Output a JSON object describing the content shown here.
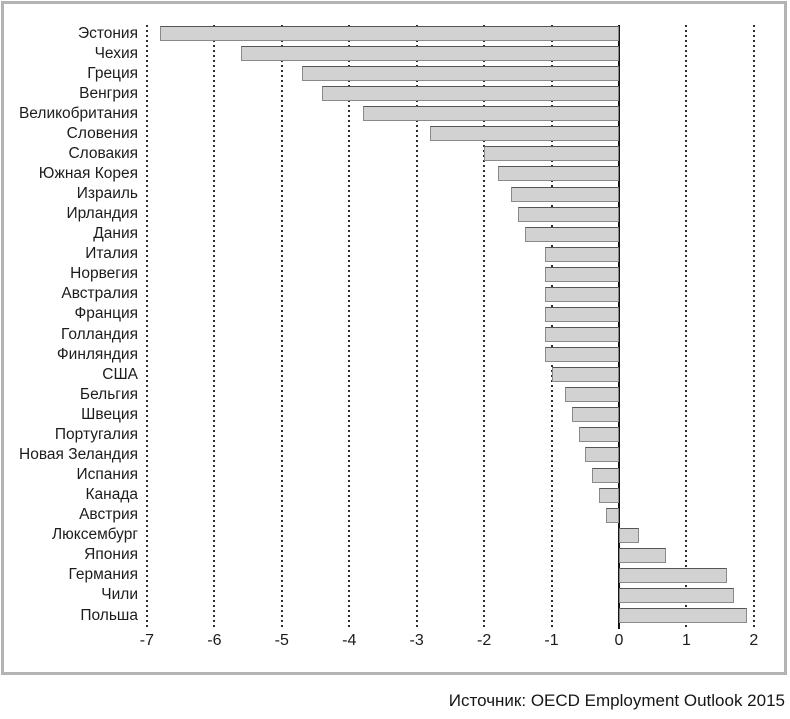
{
  "chart_data": {
    "type": "bar",
    "orientation": "horizontal",
    "title": "",
    "xlabel": "",
    "ylabel": "",
    "xlim": [
      -7,
      2
    ],
    "x_ticks": [
      -7,
      -6,
      -5,
      -4,
      -3,
      -2,
      -1,
      0,
      1,
      2
    ],
    "grid": "dashed-vertical-gridlines, solid zero axis",
    "legend": "none",
    "categories": [
      "Эстония",
      "Чехия",
      "Греция",
      "Венгрия",
      "Великобритания",
      "Словения",
      "Словакия",
      "Южная Корея",
      "Израиль",
      "Ирландия",
      "Дания",
      "Италия",
      "Норвегия",
      "Австралия",
      "Франция",
      "Голландия",
      "Финляндия",
      "США",
      "Бельгия",
      "Швеция",
      "Португалия",
      "Новая Зеландия",
      "Испания",
      "Канада",
      "Австрия",
      "Люксембург",
      "Япония",
      "Германия",
      "Чили",
      "Польша"
    ],
    "values": [
      -6.8,
      -5.6,
      -4.7,
      -4.4,
      -3.8,
      -2.8,
      -2.0,
      -1.8,
      -1.6,
      -1.5,
      -1.4,
      -1.1,
      -1.1,
      -1.1,
      -1.1,
      -1.1,
      -1.1,
      -1.0,
      -0.8,
      -0.7,
      -0.6,
      -0.5,
      -0.4,
      -0.3,
      -0.2,
      0.3,
      0.7,
      1.6,
      1.7,
      1.9
    ]
  },
  "colors": {
    "bar_fill": "#d2d2d2",
    "bar_border": "#8a8a8a",
    "panel_border": "#b3b3b3",
    "background": "#ffffff",
    "text": "#1c1c1c"
  },
  "source_note": "Источник: OECD Employment Outlook 2015"
}
